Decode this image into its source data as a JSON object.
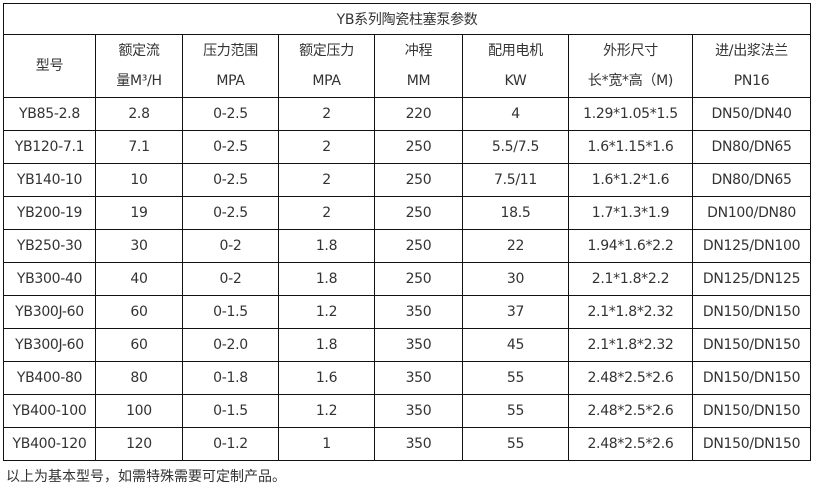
{
  "title": "YB系列陶瓷柱塞泵参数",
  "headers": [
    [
      "型号",
      ""
    ],
    [
      "额定流",
      "量M³/H"
    ],
    [
      "压力范围",
      "MPA"
    ],
    [
      "额定压力",
      "MPA"
    ],
    [
      "冲程",
      "MM"
    ],
    [
      "配用电机",
      "KW"
    ],
    [
      "外形尺寸",
      "长*宽*高（M)"
    ],
    [
      "进/出浆法兰",
      "PN16"
    ]
  ],
  "rows": [
    [
      "YB85-2.8",
      "2.8",
      "0-2.5",
      "2",
      "220",
      "4",
      "1.29*1.05*1.5",
      "DN50/DN40"
    ],
    [
      "YB120-7.1",
      "7.1",
      "0-2.5",
      "2",
      "250",
      "5.5/7.5",
      "1.6*1.15*1.6",
      "DN80/DN65"
    ],
    [
      "YB140-10",
      "10",
      "0-2.5",
      "2",
      "250",
      "7.5/11",
      "1.6*1.2*1.6",
      "DN80/DN65"
    ],
    [
      "YB200-19",
      "19",
      "0-2.5",
      "2",
      "250",
      "18.5",
      "1.7*1.3*1.9",
      "DN100/DN80"
    ],
    [
      "YB250-30",
      "30",
      "0-2",
      "1.8",
      "250",
      "22",
      "1.94*1.6*2.2",
      "DN125/DN100"
    ],
    [
      "YB300-40",
      "40",
      "0-2",
      "1.8",
      "250",
      "30",
      "2.1*1.8*2.2",
      "DN125/DN125"
    ],
    [
      "YB300J-60",
      "60",
      "0-1.5",
      "1.2",
      "350",
      "37",
      "2.1*1.8*2.32",
      "DN150/DN150"
    ],
    [
      "YB300J-60",
      "60",
      "0-2.0",
      "1.8",
      "350",
      "45",
      "2.1*1.8*2.32",
      "DN150/DN150"
    ],
    [
      "YB400-80",
      "80",
      "0-1.8",
      "1.6",
      "350",
      "55",
      "2.48*2.5*2.6",
      "DN150/DN150"
    ],
    [
      "YB400-100",
      "100",
      "0-1.5",
      "1.2",
      "350",
      "55",
      "2.48*2.5*2.6",
      "DN150/DN150"
    ],
    [
      "YB400-120",
      "120",
      "0-1.2",
      "1",
      "350",
      "55",
      "2.48*2.5*2.6",
      "DN150/DN150"
    ]
  ],
  "footnote": "以上为基本型号，如需特殊需要可定制产品。"
}
